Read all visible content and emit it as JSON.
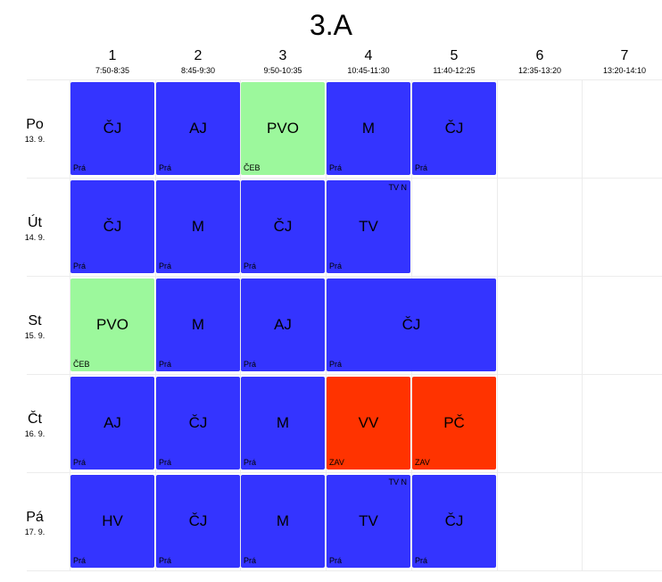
{
  "title": "3.A",
  "periods": [
    {
      "num": "1",
      "time": "7:50-8:35"
    },
    {
      "num": "2",
      "time": "8:45-9:30"
    },
    {
      "num": "3",
      "time": "9:50-10:35"
    },
    {
      "num": "4",
      "time": "10:45-11:30"
    },
    {
      "num": "5",
      "time": "11:40-12:25"
    },
    {
      "num": "6",
      "time": "12:35-13:20"
    },
    {
      "num": "7",
      "time": "13:20-14:10"
    }
  ],
  "days": [
    {
      "name": "Po",
      "date": "13. 9."
    },
    {
      "name": "Út",
      "date": "14. 9."
    },
    {
      "name": "St",
      "date": "15. 9."
    },
    {
      "name": "Čt",
      "date": "16. 9."
    },
    {
      "name": "Pá",
      "date": "17. 9."
    }
  ],
  "colors": {
    "blue": "#3434ff",
    "green": "#9cf89c",
    "red": "#ff3300"
  },
  "lessons": [
    {
      "day": 0,
      "period": 0,
      "span": 1,
      "subject": "ČJ",
      "teacher": "Prá",
      "group": "",
      "color": "blue"
    },
    {
      "day": 0,
      "period": 1,
      "span": 1,
      "subject": "AJ",
      "teacher": "Prá",
      "group": "",
      "color": "blue"
    },
    {
      "day": 0,
      "period": 2,
      "span": 1,
      "subject": "PVO",
      "teacher": "ČEB",
      "group": "",
      "color": "green"
    },
    {
      "day": 0,
      "period": 3,
      "span": 1,
      "subject": "M",
      "teacher": "Prá",
      "group": "",
      "color": "blue"
    },
    {
      "day": 0,
      "period": 4,
      "span": 1,
      "subject": "ČJ",
      "teacher": "Prá",
      "group": "",
      "color": "blue"
    },
    {
      "day": 1,
      "period": 0,
      "span": 1,
      "subject": "ČJ",
      "teacher": "Prá",
      "group": "",
      "color": "blue"
    },
    {
      "day": 1,
      "period": 1,
      "span": 1,
      "subject": "M",
      "teacher": "Prá",
      "group": "",
      "color": "blue"
    },
    {
      "day": 1,
      "period": 2,
      "span": 1,
      "subject": "ČJ",
      "teacher": "Prá",
      "group": "",
      "color": "blue"
    },
    {
      "day": 1,
      "period": 3,
      "span": 1,
      "subject": "TV",
      "teacher": "Prá",
      "group": "TV N",
      "color": "blue"
    },
    {
      "day": 2,
      "period": 0,
      "span": 1,
      "subject": "PVO",
      "teacher": "ČEB",
      "group": "",
      "color": "green"
    },
    {
      "day": 2,
      "period": 1,
      "span": 1,
      "subject": "M",
      "teacher": "Prá",
      "group": "",
      "color": "blue"
    },
    {
      "day": 2,
      "period": 2,
      "span": 1,
      "subject": "AJ",
      "teacher": "Prá",
      "group": "",
      "color": "blue"
    },
    {
      "day": 2,
      "period": 3,
      "span": 2,
      "subject": "ČJ",
      "teacher": "Prá",
      "group": "",
      "color": "blue"
    },
    {
      "day": 3,
      "period": 0,
      "span": 1,
      "subject": "AJ",
      "teacher": "Prá",
      "group": "",
      "color": "blue"
    },
    {
      "day": 3,
      "period": 1,
      "span": 1,
      "subject": "ČJ",
      "teacher": "Prá",
      "group": "",
      "color": "blue"
    },
    {
      "day": 3,
      "period": 2,
      "span": 1,
      "subject": "M",
      "teacher": "Prá",
      "group": "",
      "color": "blue"
    },
    {
      "day": 3,
      "period": 3,
      "span": 1,
      "subject": "VV",
      "teacher": "ZAV",
      "group": "",
      "color": "red"
    },
    {
      "day": 3,
      "period": 4,
      "span": 1,
      "subject": "PČ",
      "teacher": "ZAV",
      "group": "",
      "color": "red"
    },
    {
      "day": 4,
      "period": 0,
      "span": 1,
      "subject": "HV",
      "teacher": "Prá",
      "group": "",
      "color": "blue"
    },
    {
      "day": 4,
      "period": 1,
      "span": 1,
      "subject": "ČJ",
      "teacher": "Prá",
      "group": "",
      "color": "blue"
    },
    {
      "day": 4,
      "period": 2,
      "span": 1,
      "subject": "M",
      "teacher": "Prá",
      "group": "",
      "color": "blue"
    },
    {
      "day": 4,
      "period": 3,
      "span": 1,
      "subject": "TV",
      "teacher": "Prá",
      "group": "TV N",
      "color": "blue"
    },
    {
      "day": 4,
      "period": 4,
      "span": 1,
      "subject": "ČJ",
      "teacher": "Prá",
      "group": "",
      "color": "blue"
    }
  ]
}
